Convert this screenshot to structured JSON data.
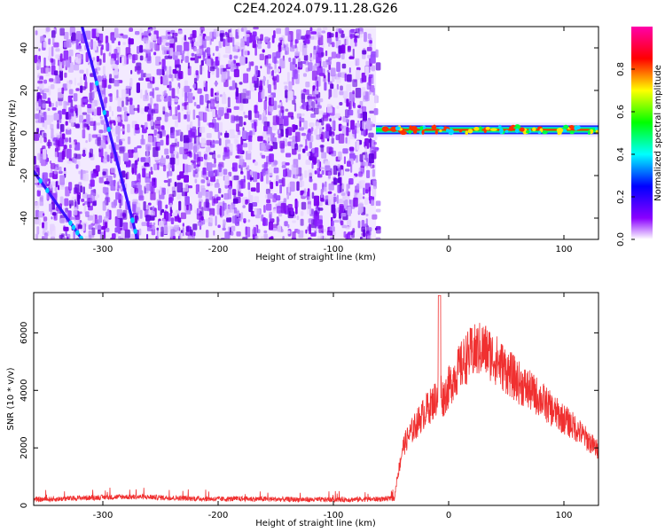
{
  "title": "C2E4.2024.079.11.28.G26",
  "chart_data": [
    {
      "type": "heatmap",
      "xlabel": "Height of straight line (km)",
      "ylabel": "Frequency (Hz)",
      "xlim": [
        -360,
        130
      ],
      "ylim": [
        -50,
        50
      ],
      "x_ticks": [
        -300,
        -200,
        -100,
        0,
        100
      ],
      "x_tick_labels": [
        "-300",
        "-200",
        "-100",
        "0",
        "100"
      ],
      "y_ticks": [
        -40,
        -20,
        0,
        20,
        40
      ],
      "y_tick_labels": [
        "-40",
        "-20",
        "0",
        "20",
        "40"
      ],
      "noise_region_x": [
        -360,
        -63
      ],
      "signal_band": {
        "x": [
          -63,
          130
        ],
        "frequency_center": 1.5
      },
      "streaks": [
        {
          "x": [
            -318,
            -270
          ],
          "y": [
            50,
            -50
          ]
        },
        {
          "x": [
            -360,
            -318
          ],
          "y": [
            -18,
            -50
          ]
        }
      ],
      "colorbar": {
        "label": "Normalized spectral amplitude",
        "range": [
          0,
          1
        ],
        "ticks": [
          0.0,
          0.2,
          0.4,
          0.6,
          0.8
        ],
        "tick_labels": [
          "0.0",
          "0.2",
          "0.4",
          "0.6",
          "0.8"
        ],
        "colors": [
          "#ffffff",
          "#8a00ff",
          "#0000ff",
          "#00ffff",
          "#00ff00",
          "#ffff00",
          "#ff0000",
          "#ff00aa"
        ]
      }
    },
    {
      "type": "line",
      "xlabel": "Height of straight line (km)",
      "ylabel": "SNR (10 * v/v)",
      "xlim": [
        -360,
        130
      ],
      "ylim": [
        0,
        7400
      ],
      "x_ticks": [
        -300,
        -200,
        -100,
        0,
        100
      ],
      "x_tick_labels": [
        "-300",
        "-200",
        "-100",
        "0",
        "100"
      ],
      "y_ticks": [
        0,
        2000,
        4000,
        6000
      ],
      "y_tick_labels": [
        "0",
        "2000",
        "4000",
        "6000"
      ],
      "color": "#f03030",
      "series": [
        {
          "x": [
            -360,
            -340,
            -320,
            -300,
            -280,
            -260,
            -240,
            -220,
            -200,
            -180,
            -160,
            -140,
            -120,
            -100,
            -80,
            -60,
            -47,
            -45,
            -42,
            -40,
            -35,
            -30,
            -25,
            -20,
            -15,
            -10,
            -8,
            -5,
            0,
            5,
            10,
            15,
            20,
            25,
            30,
            35,
            40,
            45,
            50,
            60,
            70,
            80,
            90,
            100,
            110,
            120,
            130
          ],
          "values": [
            200,
            220,
            260,
            280,
            300,
            290,
            260,
            240,
            220,
            230,
            220,
            210,
            200,
            200,
            210,
            220,
            240,
            900,
            1500,
            2000,
            2400,
            2700,
            3000,
            3300,
            3500,
            3800,
            4300,
            3700,
            4100,
            4500,
            4800,
            5100,
            5300,
            5400,
            5450,
            5300,
            5100,
            4900,
            4700,
            4300,
            4000,
            3700,
            3300,
            3000,
            2700,
            2300,
            1900
          ]
        }
      ]
    }
  ]
}
